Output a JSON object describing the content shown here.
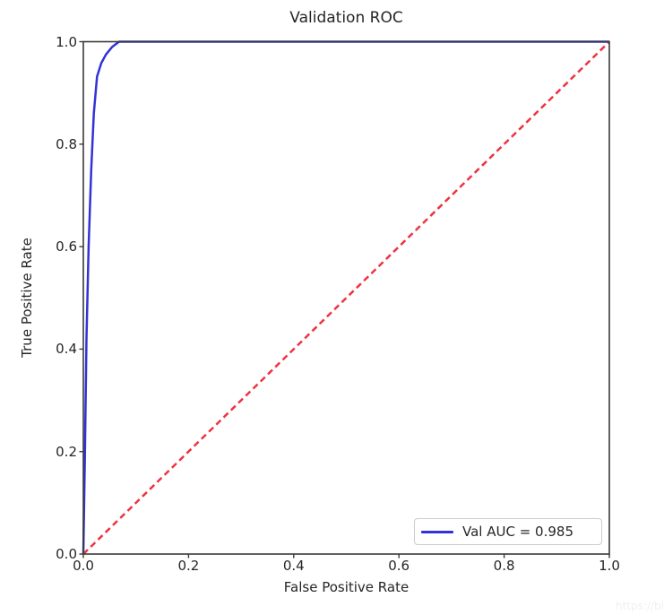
{
  "figure": {
    "watermark": "https://bl"
  },
  "colors": {
    "background": "#ffffff",
    "spine": "#3a3a3a",
    "text": "#262626",
    "curve_blue": "#3232d8",
    "diagonal_red": "#ee3340",
    "legend_border": "#cccccc",
    "watermark": "#eef0f4"
  },
  "chart_data": {
    "type": "line",
    "title": "Validation ROC",
    "xlabel": "False Positive Rate",
    "ylabel": "True Positive Rate",
    "xlim": [
      0.0,
      1.0
    ],
    "ylim": [
      0.0,
      1.0
    ],
    "xticks": [
      "0.0",
      "0.2",
      "0.4",
      "0.6",
      "0.8",
      "1.0"
    ],
    "yticks": [
      "0.0",
      "0.2",
      "0.4",
      "0.6",
      "0.8",
      "1.0"
    ],
    "grid": false,
    "auc": 0.985,
    "legend": {
      "position": "lower-right",
      "entries": [
        {
          "label": "Val AUC = 0.985",
          "color": "#3232d8",
          "style": "solid"
        }
      ]
    },
    "series": [
      {
        "name": "validation-roc-curve",
        "label": "Val AUC = 0.985",
        "color": "#3232d8",
        "style": "solid",
        "line_width": 2.5,
        "points": [
          [
            0,
            0
          ],
          [
            0.003,
            0.2
          ],
          [
            0.006,
            0.42
          ],
          [
            0.01,
            0.6
          ],
          [
            0.015,
            0.75
          ],
          [
            0.02,
            0.86
          ],
          [
            0.026,
            0.932
          ],
          [
            0.034,
            0.958
          ],
          [
            0.043,
            0.975
          ],
          [
            0.055,
            0.99
          ],
          [
            0.068,
            1.0
          ],
          [
            1.0,
            1.0
          ]
        ]
      },
      {
        "name": "chance-diagonal",
        "label": "",
        "color": "#ee3340",
        "style": "dashed",
        "line_width": 2.5,
        "points": [
          [
            0,
            0
          ],
          [
            1.0,
            1.0
          ]
        ]
      }
    ]
  }
}
